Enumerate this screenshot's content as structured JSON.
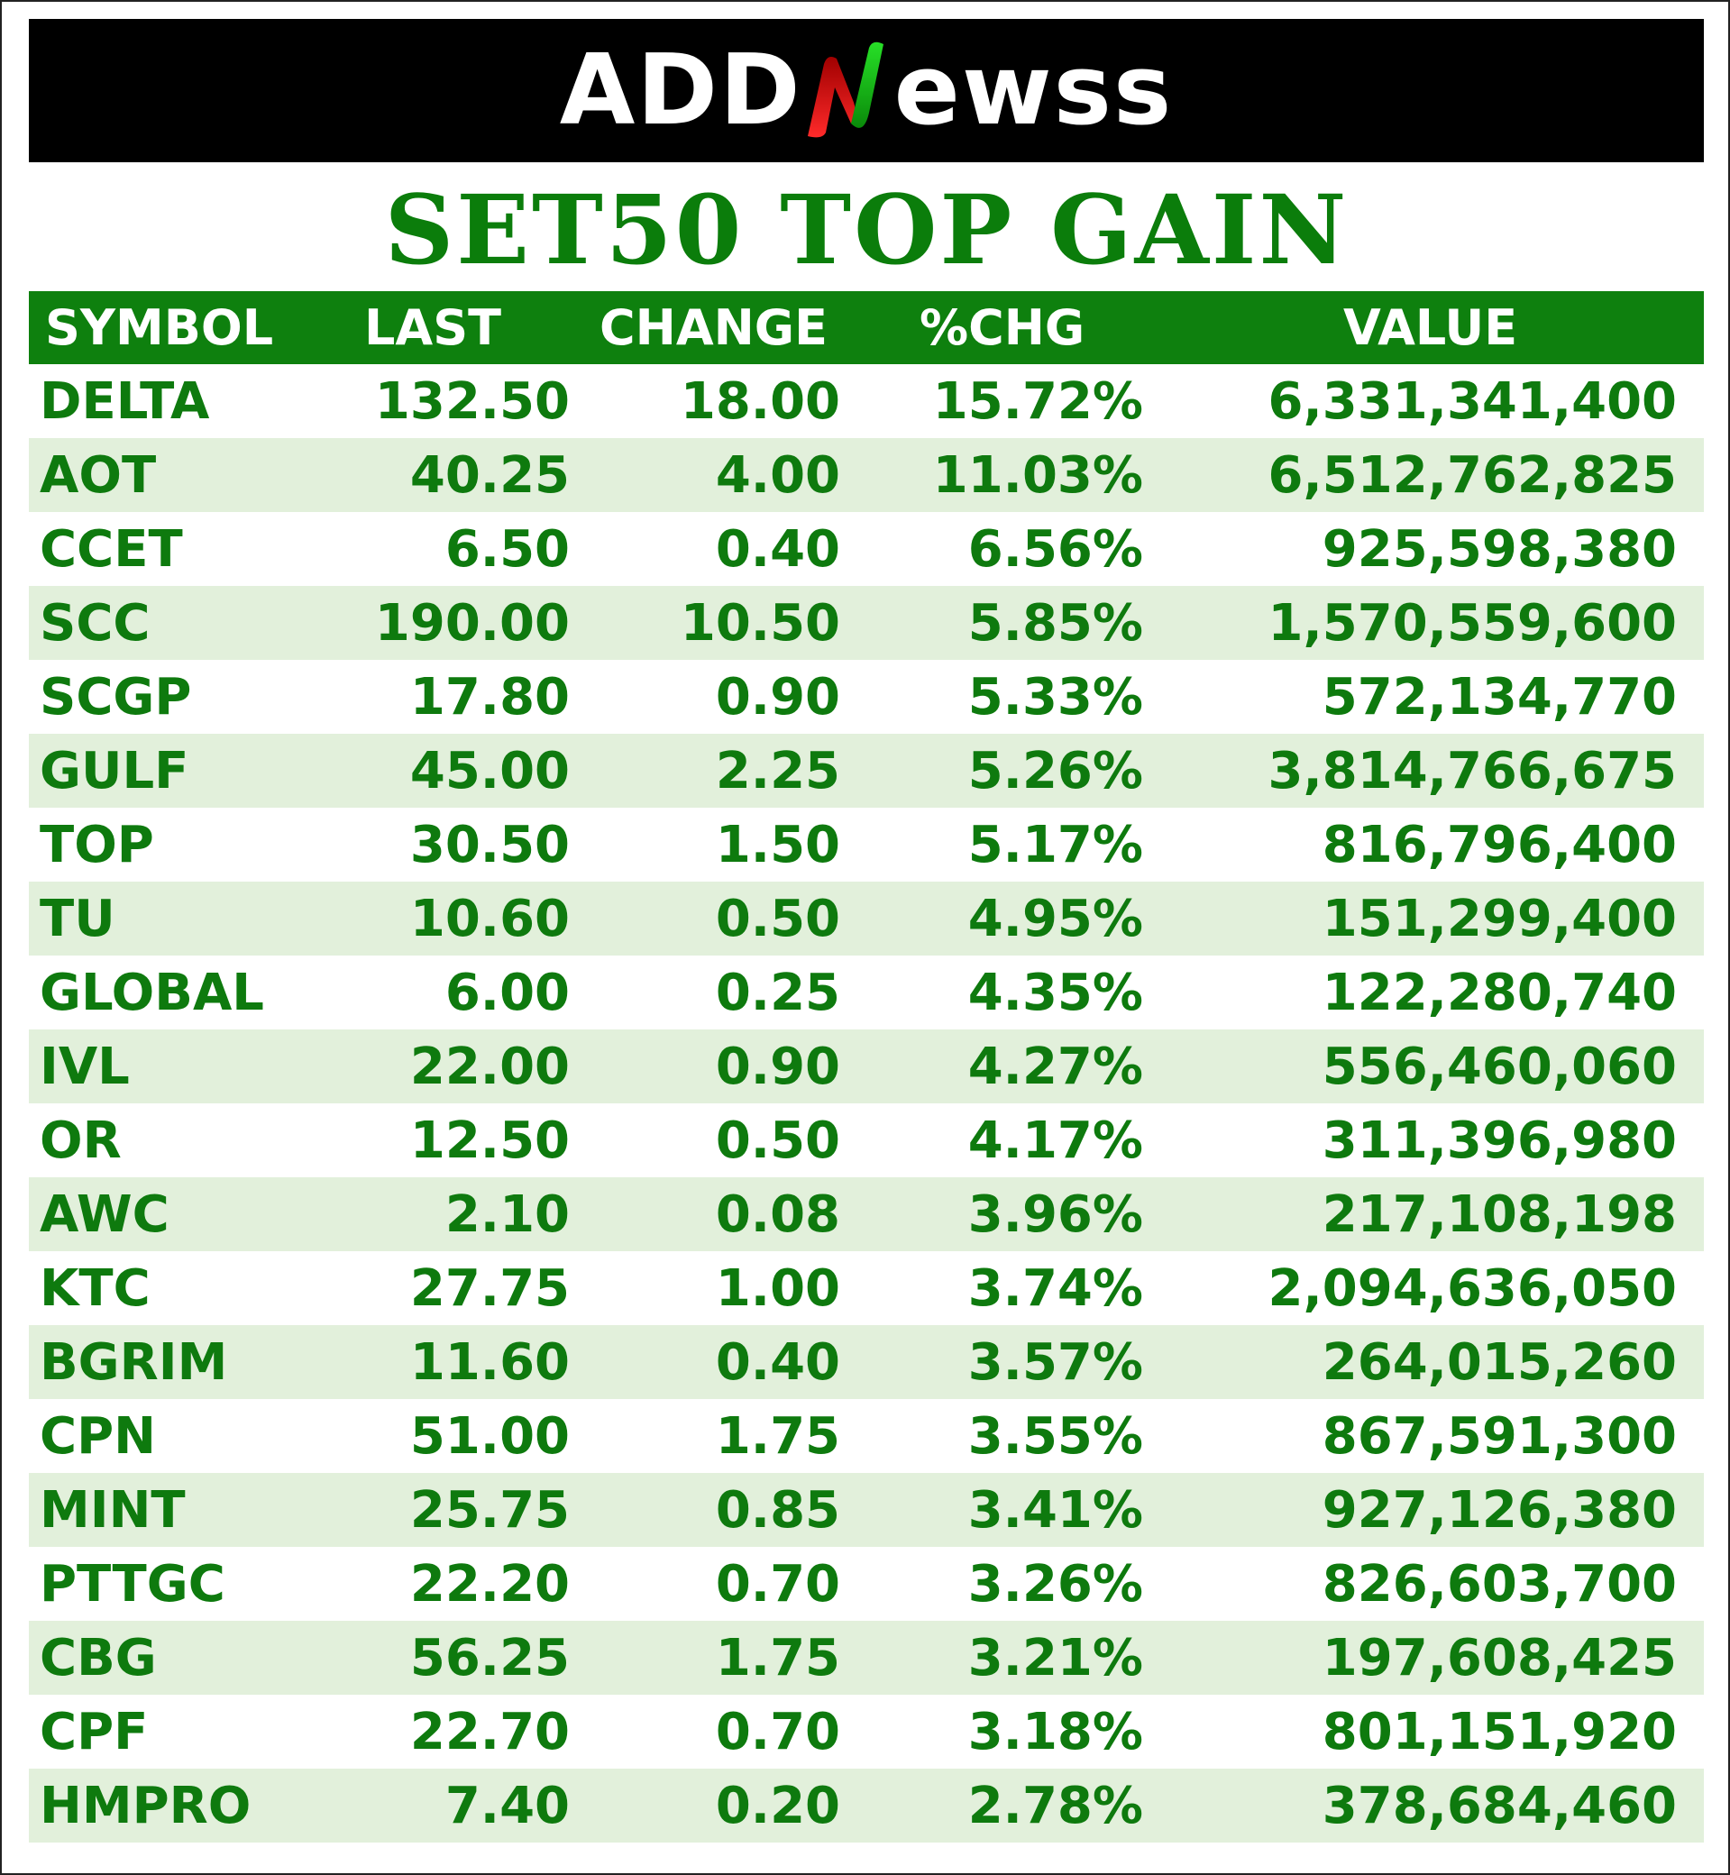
{
  "brand": {
    "logo_left": "ADD",
    "logo_right": "ewss"
  },
  "title": "SET50 TOP GAIN",
  "table": {
    "headers": {
      "symbol": "SYMBOL",
      "last": "LAST",
      "change": "CHANGE",
      "pct_change": "%CHG",
      "value": "VALUE"
    },
    "rows": [
      {
        "symbol": "DELTA",
        "last": "132.50",
        "change": "18.00",
        "pct_change": "15.72%",
        "value": "6,331,341,400"
      },
      {
        "symbol": "AOT",
        "last": "40.25",
        "change": "4.00",
        "pct_change": "11.03%",
        "value": "6,512,762,825"
      },
      {
        "symbol": "CCET",
        "last": "6.50",
        "change": "0.40",
        "pct_change": "6.56%",
        "value": "925,598,380"
      },
      {
        "symbol": "SCC",
        "last": "190.00",
        "change": "10.50",
        "pct_change": "5.85%",
        "value": "1,570,559,600"
      },
      {
        "symbol": "SCGP",
        "last": "17.80",
        "change": "0.90",
        "pct_change": "5.33%",
        "value": "572,134,770"
      },
      {
        "symbol": "GULF",
        "last": "45.00",
        "change": "2.25",
        "pct_change": "5.26%",
        "value": "3,814,766,675"
      },
      {
        "symbol": "TOP",
        "last": "30.50",
        "change": "1.50",
        "pct_change": "5.17%",
        "value": "816,796,400"
      },
      {
        "symbol": "TU",
        "last": "10.60",
        "change": "0.50",
        "pct_change": "4.95%",
        "value": "151,299,400"
      },
      {
        "symbol": "GLOBAL",
        "last": "6.00",
        "change": "0.25",
        "pct_change": "4.35%",
        "value": "122,280,740"
      },
      {
        "symbol": "IVL",
        "last": "22.00",
        "change": "0.90",
        "pct_change": "4.27%",
        "value": "556,460,060"
      },
      {
        "symbol": "OR",
        "last": "12.50",
        "change": "0.50",
        "pct_change": "4.17%",
        "value": "311,396,980"
      },
      {
        "symbol": "AWC",
        "last": "2.10",
        "change": "0.08",
        "pct_change": "3.96%",
        "value": "217,108,198"
      },
      {
        "symbol": "KTC",
        "last": "27.75",
        "change": "1.00",
        "pct_change": "3.74%",
        "value": "2,094,636,050"
      },
      {
        "symbol": "BGRIM",
        "last": "11.60",
        "change": "0.40",
        "pct_change": "3.57%",
        "value": "264,015,260"
      },
      {
        "symbol": "CPN",
        "last": "51.00",
        "change": "1.75",
        "pct_change": "3.55%",
        "value": "867,591,300"
      },
      {
        "symbol": "MINT",
        "last": "25.75",
        "change": "0.85",
        "pct_change": "3.41%",
        "value": "927,126,380"
      },
      {
        "symbol": "PTTGC",
        "last": "22.20",
        "change": "0.70",
        "pct_change": "3.26%",
        "value": "826,603,700"
      },
      {
        "symbol": "CBG",
        "last": "56.25",
        "change": "1.75",
        "pct_change": "3.21%",
        "value": "197,608,425"
      },
      {
        "symbol": "CPF",
        "last": "22.70",
        "change": "0.70",
        "pct_change": "3.18%",
        "value": "801,151,920"
      },
      {
        "symbol": "HMPRO",
        "last": "7.40",
        "change": "0.20",
        "pct_change": "2.78%",
        "value": "378,684,460"
      }
    ]
  },
  "colors": {
    "header_bg": "#0e800e",
    "text_green": "#0e7a0e",
    "alt_row_bg": "#e2f0db",
    "banner_bg": "#000000"
  }
}
